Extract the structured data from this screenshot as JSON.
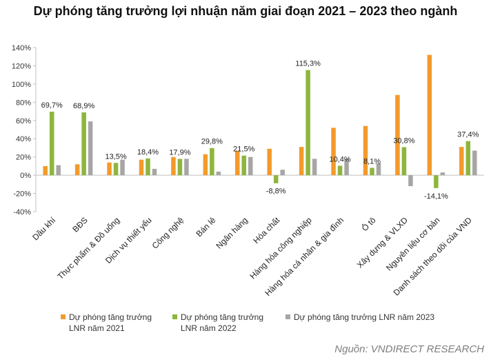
{
  "title": "Dự phóng tăng trưởng lợi nhuận năm giai đoạn 2021 – 2023 theo ngành",
  "source": "Nguồn: VNDIRECT RESEARCH",
  "colors": {
    "s2021": "#F39A2B",
    "s2022": "#8DB63C",
    "s2023": "#A6A6A6",
    "axis": "#bfbfbf"
  },
  "chart_data": {
    "type": "bar",
    "ylim": [
      -40,
      140
    ],
    "yticks": [
      -40,
      -20,
      0,
      20,
      40,
      60,
      80,
      100,
      120,
      140
    ],
    "ytick_labels": [
      "-40%",
      "-20%",
      "0%",
      "20%",
      "40%",
      "60%",
      "80%",
      "100%",
      "120%",
      "140%"
    ],
    "grid": false,
    "legend_position": "bottom",
    "categories": [
      "Dầu khí",
      "BĐS",
      "Thực phẩm & Đồ uống",
      "Dịch vụ thiết yếu",
      "Công nghệ",
      "Bán lẻ",
      "Ngân hàng",
      "Hóa chất",
      "Hàng hóa công nghiệp",
      "Hàng hóa cá nhân & gia đình",
      "Ô tô",
      "Xây dựng & VLXD",
      "Nguyên liệu cơ bản",
      "Danh sách theo dõi của VND"
    ],
    "series": [
      {
        "name": "Dự phóng tăng trưởng LNR năm 2021",
        "legend_lines": [
          "Dự phóng tăng trưởng",
          "LNR năm 2021"
        ],
        "color": "#F39A2B",
        "values": [
          10,
          12,
          14,
          17,
          20,
          23,
          27,
          29,
          31,
          52,
          54,
          88,
          132,
          31
        ]
      },
      {
        "name": "Dự phóng tăng trưởng LNR năm 2022",
        "legend_lines": [
          "Dự phóng tăng trưởng",
          "LNR năm 2022"
        ],
        "color": "#8DB63C",
        "values": [
          69.7,
          68.9,
          13.5,
          18.4,
          17.9,
          29.8,
          21.5,
          -8.8,
          115.3,
          10.4,
          8.1,
          30.8,
          -14.1,
          37.4
        ]
      },
      {
        "name": "Dự phóng tăng trưởng LNR năm 2023",
        "legend_lines": [
          "Dự phóng tăng trưởng LNR năm 2023"
        ],
        "color": "#A6A6A6",
        "values": [
          11,
          59,
          17,
          7,
          18,
          4,
          20,
          6,
          18,
          18,
          13,
          -12,
          3,
          27
        ]
      }
    ],
    "data_labels": [
      "69,7%",
      "68,9%",
      "13,5%",
      "18,4%",
      "17,9%",
      "29,8%",
      "21,5%",
      "-8,8%",
      "115,3%",
      "10,4%",
      "8,1%",
      "30,8%",
      "-14,1%",
      "37,4%"
    ]
  }
}
